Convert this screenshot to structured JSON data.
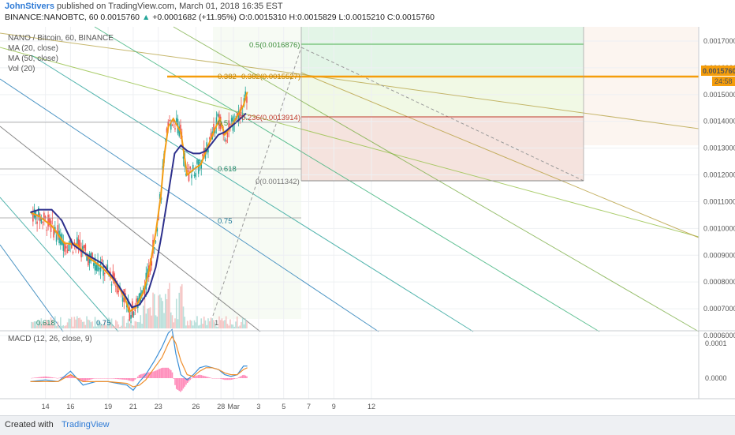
{
  "header": {
    "author": "JohnStivers",
    "published": "published on TradingView.com, March 01, 2018 16:35 EST",
    "symbol": "BINANCE:NANOBTC, 60",
    "last": "0.0015760",
    "change": "+0.0001682 (+11.95%)",
    "ohlc": "O:0.0015310 H:0.0015829 L:0.0015210 C:0.0015760"
  },
  "legend": {
    "title": "NANO / Bitcoin, 60, BINANCE",
    "ma20": "MA (20, close)",
    "ma50": "MA (50, close)",
    "vol": "Vol (20)",
    "macd": "MACD (12, 26, close, 9)"
  },
  "price_tag": {
    "value": "0.0015760",
    "countdown": "24:58"
  },
  "fib_labels": {
    "f0382": "0.382",
    "f05": "0.5",
    "f0618": "0.618",
    "f075": "0.75",
    "low_0618": "0.618",
    "low_075": "0.75",
    "low_1": "1",
    "r05": "0.5(0.0016876)",
    "r0382": "0.382(0.0015527)",
    "r0236": "0.236(0.0013914)",
    "r0": "0(0.0011342)"
  },
  "footer": {
    "created": "Created with",
    "brand": "TradingView"
  },
  "colors": {
    "ma20": "#f39c12",
    "ma50": "#2c2f8c",
    "up": "#26a69a",
    "down": "#ef5350",
    "macd": "#3a8ed6",
    "signal": "#ef8e2c",
    "hist_up": "#ff80b3",
    "orange_line": "#f59d0b"
  },
  "chart_data": [
    {
      "type": "candlestick",
      "title": "NANO / Bitcoin, 60, BINANCE",
      "x_ticks": [
        "14",
        "16",
        "19",
        "21",
        "23",
        "26",
        "28",
        "Mar",
        "3",
        "5",
        "7",
        "9",
        "12"
      ],
      "y_ticks": [
        "0.0017000",
        "0.0016000",
        "0.0015000",
        "0.0014000",
        "0.0013000",
        "0.0012000",
        "0.0011000",
        "0.0010000",
        "0.0009000",
        "0.0008000",
        "0.0007000",
        "0.0006000"
      ],
      "ylim": [
        0.00054,
        0.00178
      ],
      "last_price": 0.001576,
      "series": [
        {
          "name": "MA (20, close)",
          "color": "#f39c12",
          "points": [
            [
              12.8,
              0.00106
            ],
            [
              13.5,
              0.001045
            ],
            [
              14.5,
              0.00101
            ],
            [
              15.5,
              0.000945
            ],
            [
              16.5,
              0.00094
            ],
            [
              17.5,
              0.00089
            ],
            [
              18.5,
              0.000855
            ],
            [
              19.5,
              0.000805
            ],
            [
              20.3,
              0.000745
            ],
            [
              20.7,
              0.00069
            ],
            [
              21.2,
              0.000705
            ],
            [
              21.8,
              0.00076
            ],
            [
              22.3,
              0.00085
            ],
            [
              22.8,
              0.000985
            ],
            [
              23.2,
              0.00112
            ],
            [
              23.5,
              0.00128
            ],
            [
              23.8,
              0.00138
            ],
            [
              24.2,
              0.00141
            ],
            [
              24.8,
              0.00136
            ],
            [
              25.3,
              0.0012
            ],
            [
              25.8,
              0.00122
            ],
            [
              26.4,
              0.00124
            ],
            [
              26.9,
              0.0013
            ],
            [
              27.5,
              0.00137
            ],
            [
              27.9,
              0.00141
            ],
            [
              28.3,
              0.00135
            ],
            [
              28.8,
              0.00138
            ],
            [
              29.3,
              0.00142
            ],
            [
              29.8,
              0.00146
            ],
            [
              30.1,
              0.00151
            ]
          ]
        },
        {
          "name": "MA (50, close)",
          "color": "#2c2f8c",
          "points": [
            [
              12.8,
              0.00106
            ],
            [
              13.5,
              0.00107
            ],
            [
              14.5,
              0.00107
            ],
            [
              15.3,
              0.00103
            ],
            [
              16.2,
              0.00094
            ],
            [
              17.2,
              0.000905
            ],
            [
              18.5,
              0.00087
            ],
            [
              19.5,
              0.00081
            ],
            [
              20.4,
              0.000745
            ],
            [
              20.9,
              0.000705
            ],
            [
              21.5,
              0.000715
            ],
            [
              22.2,
              0.000765
            ],
            [
              22.8,
              0.000855
            ],
            [
              23.3,
              0.000985
            ],
            [
              23.8,
              0.00113
            ],
            [
              24.3,
              0.00128
            ],
            [
              24.8,
              0.00131
            ],
            [
              25.3,
              0.00129
            ],
            [
              25.8,
              0.00128
            ],
            [
              26.3,
              0.00128
            ],
            [
              26.8,
              0.00129
            ],
            [
              27.3,
              0.00132
            ],
            [
              27.8,
              0.00135
            ],
            [
              28.3,
              0.00136
            ],
            [
              28.8,
              0.00138
            ],
            [
              29.3,
              0.0014
            ],
            [
              30.0,
              0.00143
            ]
          ]
        }
      ],
      "annotations": [
        "Fibonacci retracement 0.5(0.0016876)",
        "0.382(0.0015527)",
        "0.236(0.0013914)",
        "0(0.0011342)",
        "Fib fan lines 0.382, 0.5, 0.618, 0.75"
      ]
    },
    {
      "type": "line",
      "title": "MACD (12, 26, close, 9)",
      "y_ticks": [
        "0.0001",
        "0.0000"
      ],
      "ylim": [
        -6e-05,
        0.00015
      ],
      "series": [
        {
          "name": "MACD",
          "color": "#3a8ed6",
          "points": [
            [
              12.8,
              -1e-05
            ],
            [
              14,
              -5e-06
            ],
            [
              15,
              -1e-05
            ],
            [
              16,
              2e-05
            ],
            [
              17,
              -2e-05
            ],
            [
              18,
              -1e-05
            ],
            [
              19,
              -1e-05
            ],
            [
              20.5,
              -2e-05
            ],
            [
              21,
              -3.5e-05
            ],
            [
              21.5,
              -1e-05
            ],
            [
              22,
              1e-05
            ],
            [
              22.7,
              5e-05
            ],
            [
              23.3,
              9e-05
            ],
            [
              23.8,
              0.00013
            ],
            [
              24.1,
              0.00014
            ],
            [
              24.4,
              7e-05
            ],
            [
              24.8,
              1e-05
            ],
            [
              25.3,
              -5e-06
            ],
            [
              25.8,
              1e-05
            ],
            [
              26.3,
              3e-05
            ],
            [
              26.8,
              3.5e-05
            ],
            [
              27.3,
              3e-05
            ],
            [
              27.8,
              2.5e-05
            ],
            [
              28.3,
              1e-05
            ],
            [
              28.8,
              5e-06
            ],
            [
              29.3,
              1e-05
            ],
            [
              29.8,
              3.5e-05
            ],
            [
              30.1,
              3.5e-05
            ]
          ]
        },
        {
          "name": "Signal",
          "color": "#ef8e2c",
          "points": [
            [
              12.8,
              -1e-05
            ],
            [
              14,
              -1e-05
            ],
            [
              15,
              -1e-05
            ],
            [
              16,
              1e-05
            ],
            [
              17,
              -1e-05
            ],
            [
              18,
              -1e-05
            ],
            [
              19,
              -1e-05
            ],
            [
              20.5,
              -1.5e-05
            ],
            [
              21,
              -2.5e-05
            ],
            [
              21.5,
              -2e-05
            ],
            [
              22,
              -5e-06
            ],
            [
              22.7,
              3e-05
            ],
            [
              23.3,
              6e-05
            ],
            [
              23.8,
              0.0001
            ],
            [
              24.1,
              0.00012
            ],
            [
              24.4,
              0.0001
            ],
            [
              24.8,
              5e-05
            ],
            [
              25.3,
              1e-05
            ],
            [
              25.8,
              5e-06
            ],
            [
              26.3,
              2e-05
            ],
            [
              26.8,
              3e-05
            ],
            [
              27.3,
              3e-05
            ],
            [
              27.8,
              2.5e-05
            ],
            [
              28.3,
              1.5e-05
            ],
            [
              28.8,
              1e-05
            ],
            [
              29.3,
              1e-05
            ],
            [
              29.8,
              2.5e-05
            ],
            [
              30.1,
              3e-05
            ]
          ]
        }
      ]
    }
  ]
}
